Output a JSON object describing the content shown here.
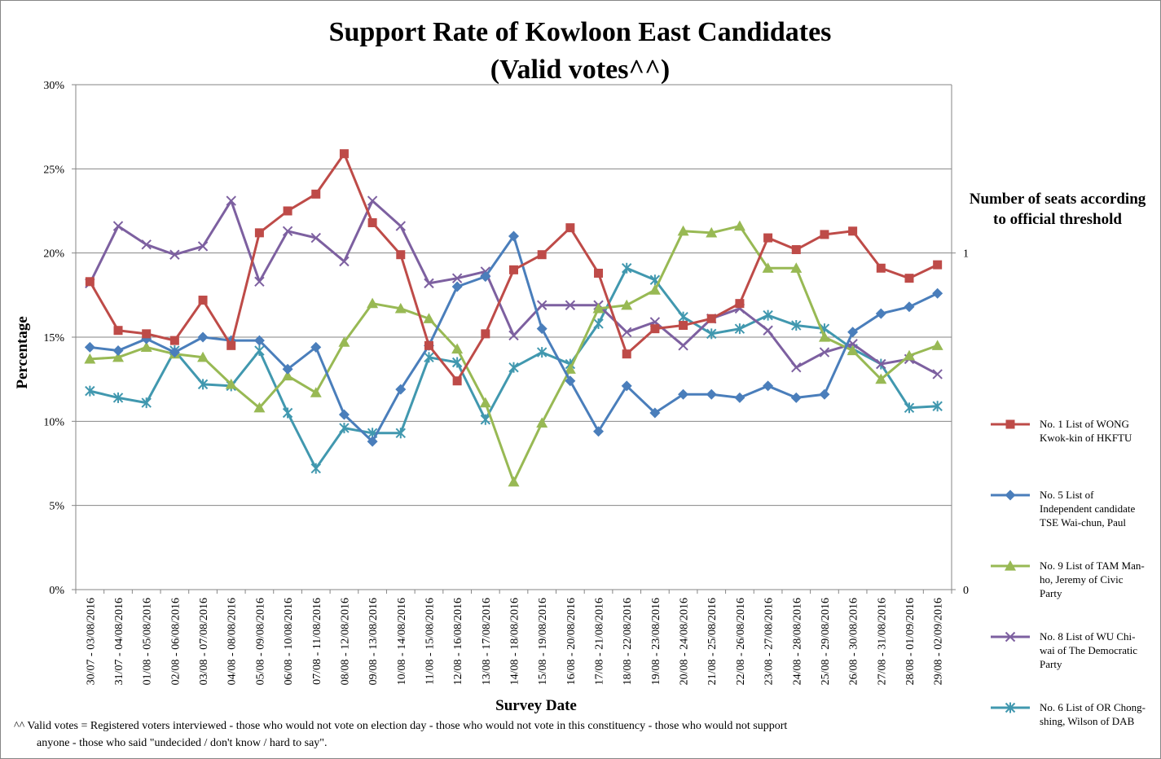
{
  "chart_data": {
    "type": "line",
    "title": "Support Rate of Kowloon East Candidates",
    "subtitle": "(Valid votes^^)",
    "xlabel": "Survey Date",
    "ylabel": "Percentage",
    "y2label": "Number  of seats according to official threshold",
    "y2label_lines": [
      "Number  of seats according",
      "to official threshold"
    ],
    "ylim": [
      0,
      30
    ],
    "yticks": [
      "0%",
      "5%",
      "10%",
      "15%",
      "20%",
      "25%",
      "30%"
    ],
    "y2ticks": [
      "0",
      "1"
    ],
    "y2_values_pct": [
      0,
      20
    ],
    "grid": true,
    "legend_position": "right",
    "categories": [
      "30/07 - 03/08/2016",
      "31/07 - 04/08/2016",
      "01/08 - 05/08/2016",
      "02/08 - 06/08/2016",
      "03/08 - 07/08/2016",
      "04/08 - 08/08/2016",
      "05/08 - 09/08/2016",
      "06/08 - 10/08/2016",
      "07/08 - 11/08/2016",
      "08/08 - 12/08/2016",
      "09/08 - 13/08/2016",
      "10/08 - 14/08/2016",
      "11/08 - 15/08/2016",
      "12/08 - 16/08/2016",
      "13/08 - 17/08/2016",
      "14/08 - 18/08/2016",
      "15/08 - 19/08/2016",
      "16/08 - 20/08/2016",
      "17/08 - 21/08/2016",
      "18/08 - 22/08/2016",
      "19/08 - 23/08/2016",
      "20/08 - 24/08/2016",
      "21/08 - 25/08/2016",
      "22/08 - 26/08/2016",
      "23/08 - 27/08/2016",
      "24/08 - 28/08/2016",
      "25/08 - 29/08/2016",
      "26/08 - 30/08/2016",
      "27/08 - 31/08/2016",
      "28/08 - 01/09/2016",
      "29/08 - 02/09/2016"
    ],
    "series": [
      {
        "name": "No. 1 List of WONG Kwok-kin of HKFTU",
        "legend_lines": [
          "No. 1 List of WONG",
          "Kwok-kin of HKFTU"
        ],
        "color": "#BE4B48",
        "marker": "square",
        "values": [
          18.3,
          15.4,
          15.2,
          14.8,
          17.2,
          14.5,
          21.2,
          22.5,
          23.5,
          25.9,
          21.8,
          19.9,
          14.5,
          12.4,
          15.2,
          19.0,
          19.9,
          21.5,
          18.8,
          14.0,
          15.5,
          15.7,
          16.1,
          17.0,
          20.9,
          20.2,
          21.1,
          21.3,
          19.1,
          18.5,
          19.3
        ]
      },
      {
        "name": "No. 5 List of Independent candidate TSE Wai-chun, Paul",
        "legend_lines": [
          "No. 5 List of",
          "Independent candidate",
          "TSE Wai-chun, Paul"
        ],
        "color": "#4A7EBB",
        "marker": "diamond",
        "values": [
          14.4,
          14.2,
          14.9,
          14.1,
          15.0,
          14.8,
          14.8,
          13.1,
          14.4,
          10.4,
          8.8,
          11.9,
          14.5,
          18.0,
          18.6,
          21.0,
          15.5,
          12.4,
          9.4,
          12.1,
          10.5,
          11.6,
          11.6,
          11.4,
          12.1,
          11.4,
          11.6,
          15.3,
          16.4,
          16.8,
          17.6
        ]
      },
      {
        "name": "No. 9 List of TAM Man-ho, Jeremy of Civic Party",
        "legend_lines": [
          "No. 9 List of TAM Man-",
          "ho, Jeremy of Civic",
          "Party"
        ],
        "color": "#98B954",
        "marker": "triangle",
        "values": [
          13.7,
          13.8,
          14.4,
          14.0,
          13.8,
          12.2,
          10.8,
          12.7,
          11.7,
          14.7,
          17.0,
          16.7,
          16.1,
          14.3,
          11.1,
          6.4,
          9.9,
          13.1,
          16.7,
          16.9,
          17.8,
          21.3,
          21.2,
          21.6,
          19.1,
          19.1,
          15.0,
          14.2,
          12.5,
          13.9,
          14.5
        ]
      },
      {
        "name": "No. 8 List of WU Chi-wai of The Democratic Party",
        "legend_lines": [
          "No. 8 List of WU Chi-",
          "wai of The Democratic",
          "Party"
        ],
        "color": "#7D60A0",
        "marker": "x",
        "values": [
          18.2,
          21.6,
          20.5,
          19.9,
          20.4,
          23.1,
          18.3,
          21.3,
          20.9,
          19.5,
          23.1,
          21.6,
          18.2,
          18.5,
          18.9,
          15.1,
          16.9,
          16.9,
          16.9,
          15.3,
          15.9,
          14.5,
          16.1,
          16.7,
          15.4,
          13.2,
          14.1,
          14.6,
          13.4,
          13.7,
          12.8
        ]
      },
      {
        "name": "No. 6 List of OR Chong-shing, Wilson of DAB",
        "legend_lines": [
          "No. 6 List of OR Chong-",
          "shing, Wilson of DAB"
        ],
        "color": "#4198AF",
        "marker": "star",
        "values": [
          11.8,
          11.4,
          11.1,
          14.2,
          12.2,
          12.1,
          14.2,
          10.5,
          7.2,
          9.6,
          9.3,
          9.3,
          13.8,
          13.5,
          10.1,
          13.2,
          14.1,
          13.4,
          15.8,
          19.1,
          18.4,
          16.2,
          15.2,
          15.5,
          16.3,
          15.7,
          15.5,
          14.3,
          13.4,
          10.8,
          10.9
        ]
      }
    ],
    "footnote_lines": [
      "^^ Valid votes = Registered voters interviewed - those who would not vote on election day - those who would not vote in this constituency - those who would not support",
      "anyone - those who said \"undecided / don't know / hard to say\"."
    ]
  }
}
